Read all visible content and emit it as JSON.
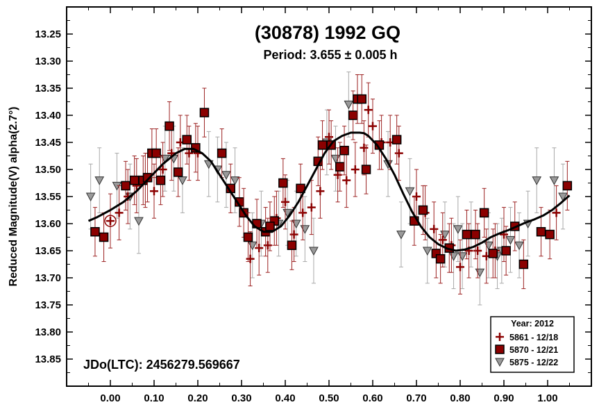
{
  "chart_data": {
    "type": "scatter",
    "title": "(30878) 1992 GQ",
    "subtitle": "Period: 3.655 ± 0.005 h",
    "xlabel": "",
    "ylabel": "Reduced Magnitude(V) alpha(2.7°)",
    "annotation": "JDo(LTC): 2456279.569667",
    "xlim": [
      -0.1,
      1.1
    ],
    "ylim": [
      13.9,
      13.2
    ],
    "y_inverted": true,
    "x_ticks": [
      "0.00",
      "0.10",
      "0.20",
      "0.30",
      "0.40",
      "0.50",
      "0.60",
      "0.70",
      "0.80",
      "0.90",
      "1.00"
    ],
    "y_ticks": [
      "13.25",
      "13.30",
      "13.35",
      "13.40",
      "13.45",
      "13.50",
      "13.55",
      "13.60",
      "13.65",
      "13.70",
      "13.75",
      "13.80",
      "13.85"
    ],
    "legend": {
      "title": "Year: 2012",
      "placement": "bottom-right",
      "entries": [
        "5861 - 12/18",
        "5870 - 12/21",
        "5875 - 12/22"
      ]
    },
    "series": [
      {
        "name": "5861 - 12/18",
        "marker": "plus",
        "color": "#8b0000",
        "error": 0.05,
        "x": [
          0.0,
          0.02,
          0.04,
          0.06,
          0.08,
          0.1,
          0.12,
          0.14,
          0.16,
          0.18,
          0.2,
          0.5,
          0.52,
          0.54,
          0.56,
          0.58,
          0.59,
          0.6,
          0.62,
          0.64,
          0.66,
          0.32,
          0.34,
          0.36,
          0.38,
          0.4,
          0.42,
          0.44,
          0.46,
          0.48,
          0.7,
          0.72,
          0.74,
          0.76,
          0.78,
          0.8,
          0.82,
          0.84,
          0.86,
          0.88,
          0.9,
          1.02
        ],
        "y": [
          13.595,
          13.58,
          13.55,
          13.53,
          13.52,
          13.54,
          13.5,
          13.47,
          13.45,
          13.47,
          13.47,
          13.44,
          13.51,
          13.52,
          13.5,
          13.46,
          13.39,
          13.42,
          13.45,
          13.45,
          13.47,
          13.665,
          13.645,
          13.64,
          13.59,
          13.56,
          13.62,
          13.58,
          13.57,
          13.54,
          13.55,
          13.58,
          13.61,
          13.63,
          13.64,
          13.68,
          13.65,
          13.65,
          13.66,
          13.65,
          13.62,
          13.58
        ]
      },
      {
        "name": "5870 - 12/21",
        "marker": "square",
        "color": "#8b0000",
        "error": 0.045,
        "x": [
          -0.035,
          -0.015,
          0.035,
          0.055,
          0.075,
          0.085,
          0.095,
          0.105,
          0.115,
          0.135,
          0.155,
          0.175,
          0.195,
          0.215,
          0.255,
          0.275,
          0.295,
          0.305,
          0.315,
          0.335,
          0.355,
          0.375,
          0.395,
          0.415,
          0.475,
          0.485,
          0.505,
          0.525,
          0.535,
          0.555,
          0.565,
          0.575,
          0.585,
          0.615,
          0.655,
          0.695,
          0.715,
          0.745,
          0.755,
          0.775,
          0.815,
          0.835,
          0.855,
          0.875,
          0.905,
          0.925,
          0.945,
          0.985,
          1.005,
          1.045,
          0.435,
          0.365
        ],
        "y": [
          13.615,
          13.625,
          13.53,
          13.52,
          13.52,
          13.515,
          13.47,
          13.47,
          13.52,
          13.42,
          13.505,
          13.445,
          13.46,
          13.395,
          13.47,
          13.535,
          13.56,
          13.58,
          13.625,
          13.6,
          13.615,
          13.595,
          13.525,
          13.64,
          13.485,
          13.455,
          13.455,
          13.495,
          13.465,
          13.4,
          13.37,
          13.37,
          13.5,
          13.455,
          13.445,
          13.595,
          13.575,
          13.655,
          13.665,
          13.645,
          13.62,
          13.62,
          13.58,
          13.655,
          13.65,
          13.605,
          13.675,
          13.615,
          13.62,
          13.53,
          13.535,
          13.605
        ]
      },
      {
        "name": "5875 - 12/22",
        "marker": "triangle",
        "color": "#999999",
        "error": 0.06,
        "x": [
          -0.045,
          -0.025,
          0.015,
          0.045,
          0.065,
          0.125,
          0.145,
          0.165,
          0.225,
          0.245,
          0.265,
          0.285,
          0.325,
          0.345,
          0.385,
          0.405,
          0.425,
          0.445,
          0.465,
          0.495,
          0.515,
          0.545,
          0.635,
          0.665,
          0.685,
          0.725,
          0.765,
          0.785,
          0.795,
          0.805,
          0.825,
          0.845,
          0.865,
          0.885,
          0.895,
          0.915,
          0.935,
          0.955,
          0.975,
          1.015,
          1.035
        ],
        "y": [
          13.55,
          13.52,
          13.53,
          13.55,
          13.595,
          13.48,
          13.48,
          13.52,
          13.49,
          13.5,
          13.51,
          13.52,
          13.64,
          13.6,
          13.6,
          13.58,
          13.6,
          13.61,
          13.65,
          13.45,
          13.48,
          13.38,
          13.49,
          13.62,
          13.54,
          13.65,
          13.62,
          13.66,
          13.61,
          13.66,
          13.62,
          13.69,
          13.64,
          13.66,
          13.65,
          13.63,
          13.64,
          13.6,
          13.52,
          13.52,
          13.55
        ]
      }
    ],
    "fit_curve": {
      "x": [
        -0.05,
        -0.03,
        0.0,
        0.03,
        0.06,
        0.09,
        0.12,
        0.15,
        0.17,
        0.19,
        0.21,
        0.23,
        0.25,
        0.27,
        0.29,
        0.31,
        0.33,
        0.35,
        0.37,
        0.39,
        0.41,
        0.43,
        0.45,
        0.47,
        0.49,
        0.51,
        0.53,
        0.55,
        0.57,
        0.58,
        0.59,
        0.61,
        0.63,
        0.65,
        0.67,
        0.69,
        0.71,
        0.73,
        0.75,
        0.77,
        0.79,
        0.81,
        0.83,
        0.85,
        0.87,
        0.89,
        0.91,
        0.93,
        0.95,
        0.97,
        0.99,
        1.01,
        1.03,
        1.05
      ],
      "y": [
        13.595,
        13.588,
        13.575,
        13.56,
        13.54,
        13.515,
        13.49,
        13.47,
        13.462,
        13.462,
        13.47,
        13.485,
        13.51,
        13.535,
        13.56,
        13.585,
        13.605,
        13.615,
        13.615,
        13.605,
        13.585,
        13.56,
        13.53,
        13.5,
        13.47,
        13.448,
        13.438,
        13.432,
        13.432,
        13.433,
        13.438,
        13.455,
        13.48,
        13.51,
        13.545,
        13.578,
        13.605,
        13.625,
        13.638,
        13.646,
        13.65,
        13.648,
        13.643,
        13.635,
        13.625,
        13.618,
        13.612,
        13.605,
        13.598,
        13.592,
        13.585,
        13.575,
        13.562,
        13.548
      ]
    }
  }
}
